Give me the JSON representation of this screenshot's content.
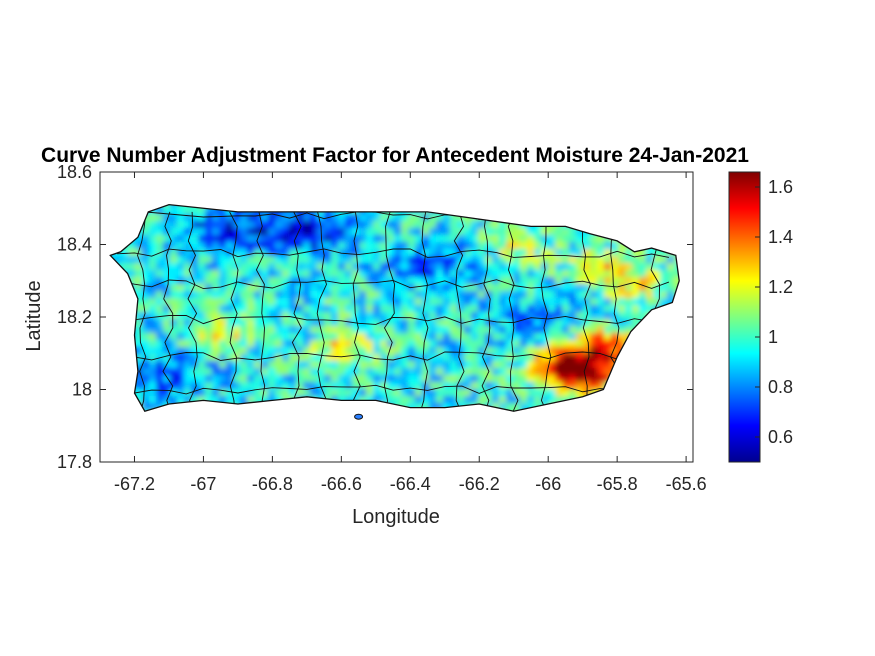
{
  "chart_data": {
    "type": "heatmap",
    "title": "Curve Number Adjustment Factor for Antecedent Moisture 24-Jan-2021",
    "xlabel": "Longitude",
    "ylabel": "Latitude",
    "xlim": [
      -67.3,
      -65.58
    ],
    "ylim": [
      17.8,
      18.6
    ],
    "xticks": [
      -67.2,
      -67,
      -66.8,
      -66.6,
      -66.4,
      -66.2,
      -66,
      -65.8,
      -65.6
    ],
    "xtick_labels": [
      "-67.2",
      "-67",
      "-66.8",
      "-66.6",
      "-66.4",
      "-66.2",
      "-66",
      "-65.8",
      "-65.6"
    ],
    "yticks": [
      17.8,
      18,
      18.2,
      18.4,
      18.6
    ],
    "ytick_labels": [
      "17.8",
      "18",
      "18.2",
      "18.4",
      "18.6"
    ],
    "colormap": "jet",
    "clim": [
      0.5,
      1.66
    ],
    "colorbar_ticks": [
      0.6,
      0.8,
      1,
      1.2,
      1.4,
      1.6
    ],
    "colorbar_tick_labels": [
      "0.6",
      "0.8",
      "1",
      "1.2",
      "1.4",
      "1.6"
    ],
    "region_outline": [
      [
        -67.27,
        18.37
      ],
      [
        -67.24,
        18.38
      ],
      [
        -67.19,
        18.42
      ],
      [
        -67.16,
        18.49
      ],
      [
        -67.1,
        18.51
      ],
      [
        -66.9,
        18.49
      ],
      [
        -66.7,
        18.49
      ],
      [
        -66.55,
        18.49
      ],
      [
        -66.35,
        18.49
      ],
      [
        -66.2,
        18.47
      ],
      [
        -66.05,
        18.45
      ],
      [
        -65.95,
        18.45
      ],
      [
        -65.88,
        18.43
      ],
      [
        -65.8,
        18.41
      ],
      [
        -65.75,
        18.38
      ],
      [
        -65.7,
        18.39
      ],
      [
        -65.63,
        18.37
      ],
      [
        -65.62,
        18.3
      ],
      [
        -65.64,
        18.24
      ],
      [
        -65.7,
        18.22
      ],
      [
        -65.76,
        18.16
      ],
      [
        -65.8,
        18.09
      ],
      [
        -65.84,
        18.0
      ],
      [
        -65.9,
        17.98
      ],
      [
        -66.0,
        17.96
      ],
      [
        -66.1,
        17.94
      ],
      [
        -66.2,
        17.96
      ],
      [
        -66.3,
        17.95
      ],
      [
        -66.4,
        17.95
      ],
      [
        -66.5,
        17.97
      ],
      [
        -66.6,
        17.97
      ],
      [
        -66.7,
        17.98
      ],
      [
        -66.8,
        17.97
      ],
      [
        -66.9,
        17.96
      ],
      [
        -67.0,
        17.97
      ],
      [
        -67.1,
        17.96
      ],
      [
        -67.17,
        17.94
      ],
      [
        -67.2,
        17.99
      ],
      [
        -67.19,
        18.05
      ],
      [
        -67.2,
        18.15
      ],
      [
        -67.19,
        18.25
      ],
      [
        -67.22,
        18.32
      ]
    ],
    "moisture_hotspots": [
      {
        "lon": -65.9,
        "lat": 18.05,
        "value": 1.6
      },
      {
        "lon": -65.97,
        "lat": 18.08,
        "value": 1.45
      },
      {
        "lon": -65.84,
        "lat": 18.13,
        "value": 1.45
      },
      {
        "lon": -65.86,
        "lat": 18.35,
        "value": 1.25
      },
      {
        "lon": -65.76,
        "lat": 18.3,
        "value": 1.2
      },
      {
        "lon": -66.6,
        "lat": 18.12,
        "value": 1.25
      },
      {
        "lon": -66.95,
        "lat": 18.16,
        "value": 1.2
      },
      {
        "lon": -66.1,
        "lat": 18.4,
        "value": 1.15
      }
    ],
    "moisture_lows": [
      {
        "lon": -66.7,
        "lat": 18.45,
        "value": 0.62
      },
      {
        "lon": -66.95,
        "lat": 18.45,
        "value": 0.68
      },
      {
        "lon": -67.15,
        "lat": 18.05,
        "value": 0.72
      },
      {
        "lon": -66.35,
        "lat": 18.35,
        "value": 0.75
      },
      {
        "lon": -66.05,
        "lat": 18.2,
        "value": 0.78
      }
    ],
    "background_value": 0.95
  }
}
